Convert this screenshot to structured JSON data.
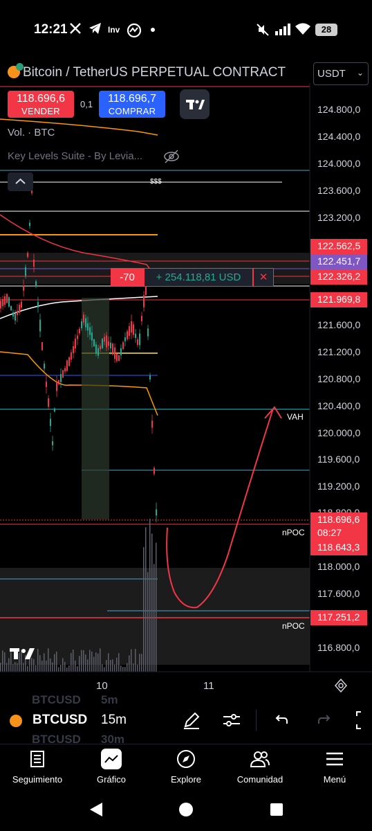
{
  "status_bar": {
    "time": "12:21",
    "app_icons": [
      "x-icon",
      "telegram-icon",
      "investing-icon",
      "tradingview-icon",
      "dot-icon"
    ],
    "battery": "28"
  },
  "chart": {
    "symbol_title": "Bitcoin / TetherUS PERPETUAL CONTRACT",
    "currency_select": "USDT",
    "sell": {
      "price": "118.696,6",
      "label": "VENDER"
    },
    "buy": {
      "price": "118.696,7",
      "label": "COMPRAR"
    },
    "spread": "0,1",
    "volume_label": "Vol. · BTC",
    "indicator_label": "Key Levels Suite - By Levia...",
    "dollar_marker": "$$$",
    "price_axis": [
      "124.800,0",
      "124.400,0",
      "124.000,0",
      "123.600,0",
      "123.200,0",
      "121.600,0",
      "121.200,0",
      "120.800,0",
      "120.400,0",
      "120.000,0",
      "119.600,0",
      "119.200,0",
      "118.800,0",
      "118.000,0",
      "117.600,0",
      "116.800,0"
    ],
    "price_labels": [
      {
        "value": "122.562,5",
        "color": "#f23645"
      },
      {
        "value": "122.451,7",
        "color": "#7e57c2"
      },
      {
        "value": "122.326,2",
        "color": "#f23645"
      },
      {
        "value": "121.969,8",
        "color": "#f23645"
      },
      {
        "value": "118.696,6",
        "color": "#f23645"
      },
      {
        "value": "118.643,3",
        "color": "#f23645"
      },
      {
        "value": "117.251,2",
        "color": "#f23645"
      }
    ],
    "countdown": "08:27",
    "time_axis": [
      "10",
      "11"
    ],
    "position": {
      "qty": "-70",
      "pnl": "+ 254.118,81 USD",
      "close": "✕"
    },
    "annotations": {
      "vah": "VAH",
      "npoc1": "nPOC",
      "npoc2": "nPOC"
    }
  },
  "toolbar": {
    "ghost_above": "BTCUSD",
    "symbol": "BTCUSD",
    "ghost_below": "BTCUSD",
    "ghost_tf_above": "5m",
    "timeframe": "15m",
    "ghost_tf_below": "30m"
  },
  "nav": {
    "items": [
      "Seguimiento",
      "Gráfico",
      "Explore",
      "Comunidad",
      "Menú"
    ]
  }
}
